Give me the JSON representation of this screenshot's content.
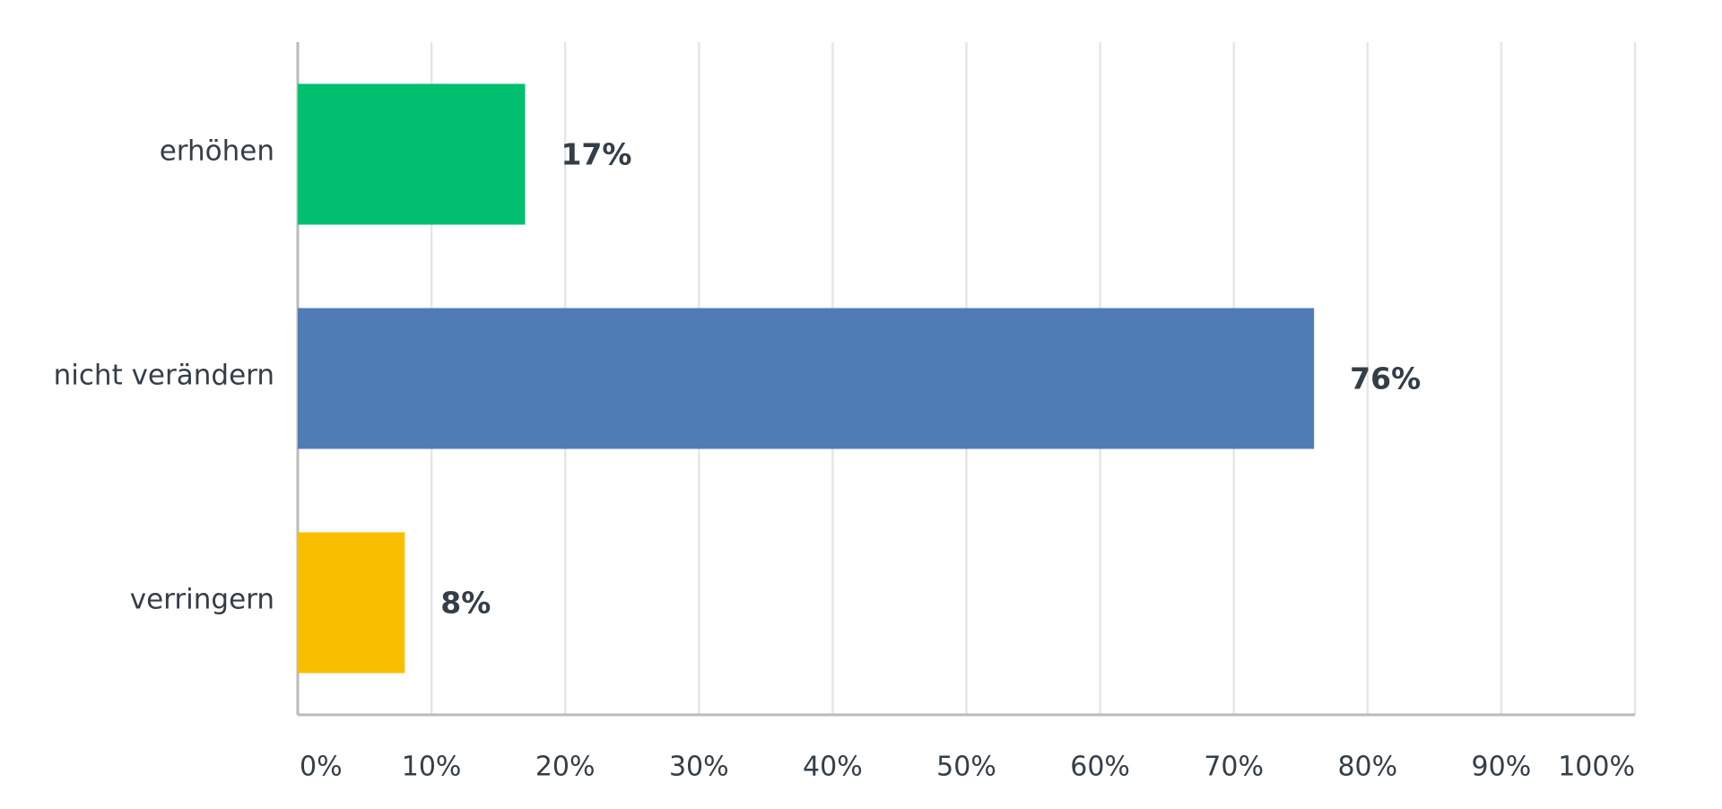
{
  "chart_data": {
    "type": "hbar",
    "categories": [
      "erhöhen",
      "nicht verändern",
      "verringern"
    ],
    "values": [
      17,
      76,
      8
    ],
    "value_labels": [
      "17%",
      "76%",
      "8%"
    ],
    "colors": [
      "#00bf6f",
      "#507cb6",
      "#f9be00"
    ],
    "xlim": [
      0,
      100
    ],
    "xticks": [
      {
        "value": 0,
        "label": "0%"
      },
      {
        "value": 10,
        "label": "10%"
      },
      {
        "value": 20,
        "label": "20%"
      },
      {
        "value": 30,
        "label": "30%"
      },
      {
        "value": 40,
        "label": "40%"
      },
      {
        "value": 50,
        "label": "50%"
      },
      {
        "value": 60,
        "label": "60%"
      },
      {
        "value": 70,
        "label": "70%"
      },
      {
        "value": 80,
        "label": "80%"
      },
      {
        "value": 90,
        "label": "90%"
      },
      {
        "value": 100,
        "label": "100%"
      }
    ],
    "grid": true
  }
}
